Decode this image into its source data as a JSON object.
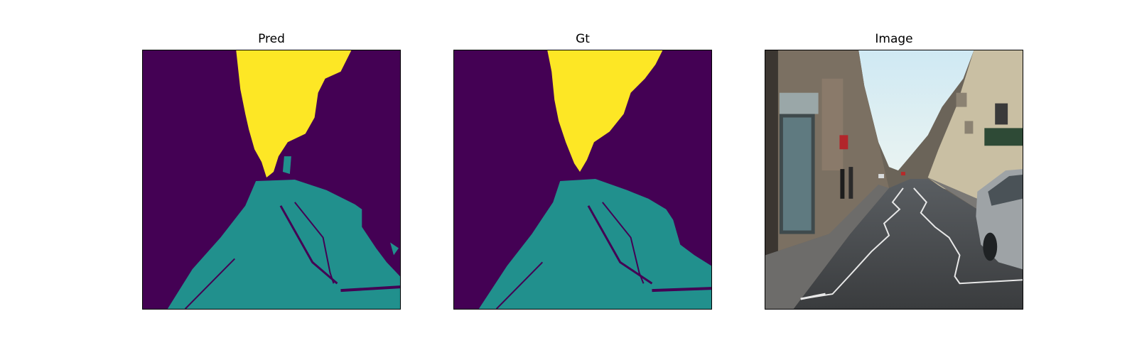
{
  "panels": [
    {
      "title": "Pred"
    },
    {
      "title": "Gt"
    },
    {
      "title": "Image"
    }
  ],
  "colors": {
    "background_class": "#440154",
    "road_class": "#21908d",
    "sky_class": "#fde725"
  }
}
